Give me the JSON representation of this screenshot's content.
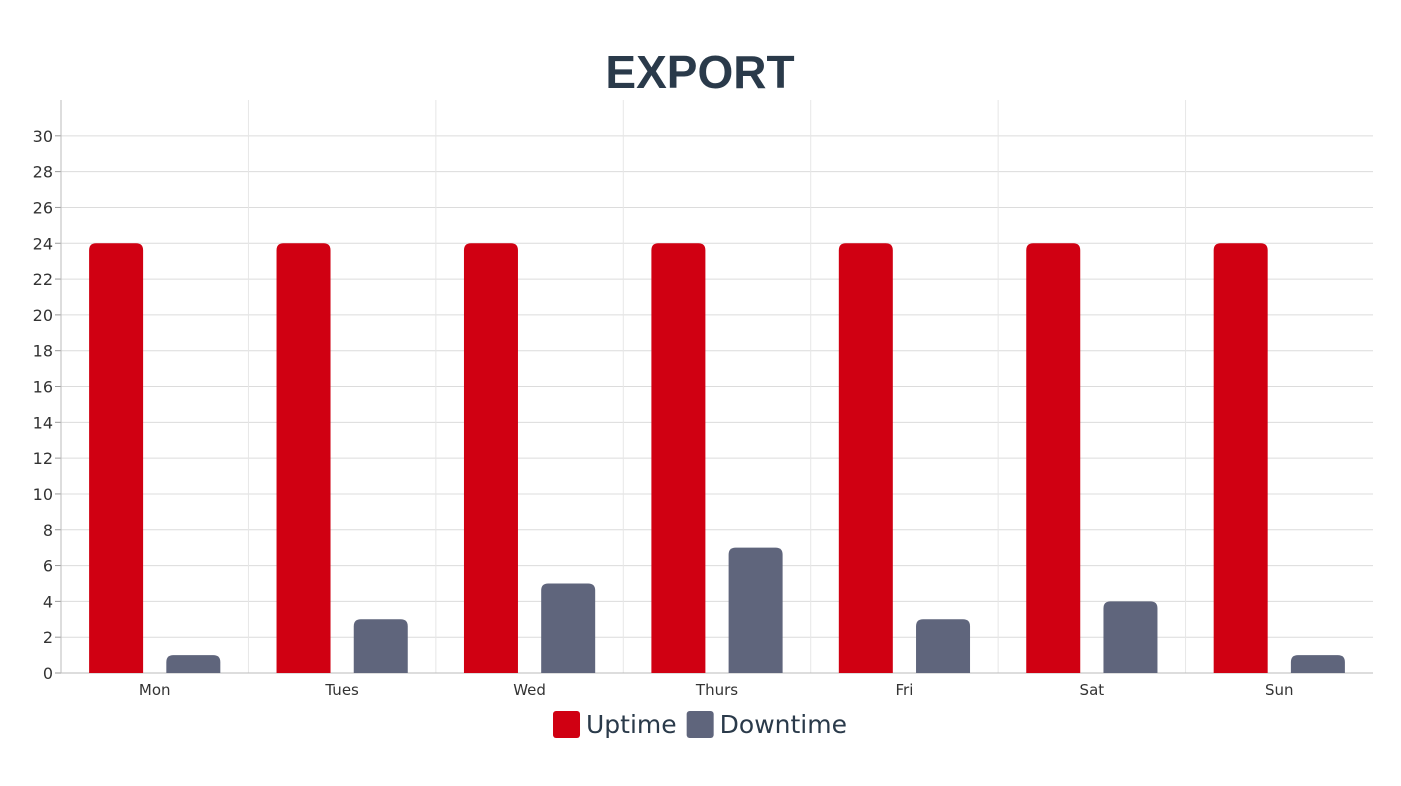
{
  "chart_data": {
    "type": "bar",
    "title": "EXPORT",
    "xlabel": "",
    "ylabel": "",
    "categories": [
      "Mon",
      "Tues",
      "Wed",
      "Thurs",
      "Fri",
      "Sat",
      "Sun"
    ],
    "series": [
      {
        "name": "Uptime",
        "color": "#d00012",
        "values": [
          24,
          24,
          24,
          24,
          24,
          24,
          24
        ]
      },
      {
        "name": "Downtime",
        "color": "#5f657c",
        "values": [
          1,
          3,
          5,
          7,
          3,
          4,
          1
        ]
      }
    ],
    "ylim": [
      0,
      32
    ],
    "yticks": [
      0,
      2,
      4,
      6,
      8,
      10,
      12,
      14,
      16,
      18,
      20,
      22,
      24,
      26,
      28,
      30
    ],
    "grid": true,
    "legend": "bottom-center"
  }
}
